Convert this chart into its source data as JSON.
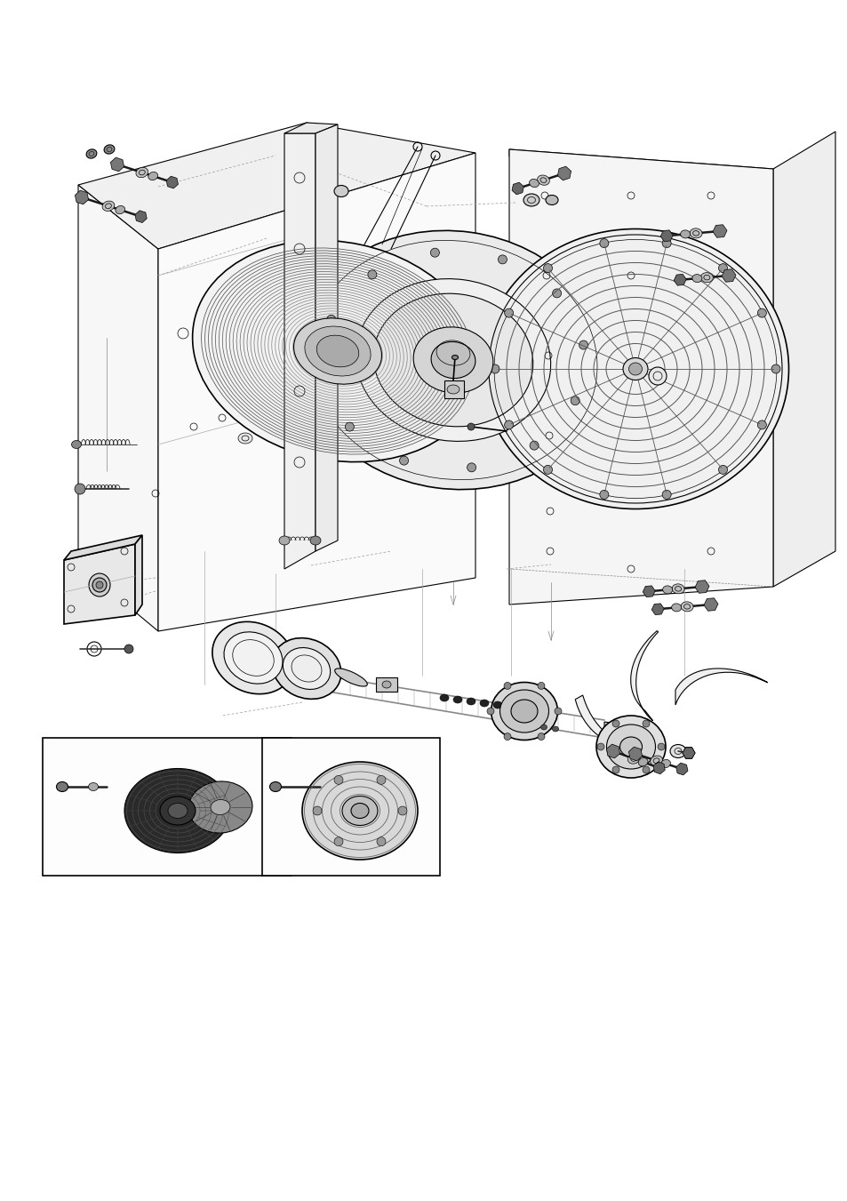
{
  "bg_color": "#ffffff",
  "lc": "#000000",
  "lc_dark": "#1a1a1a",
  "lc_gray": "#888888",
  "lc_light": "#cccccc",
  "figsize": [
    9.54,
    13.51
  ],
  "dpi": 100
}
